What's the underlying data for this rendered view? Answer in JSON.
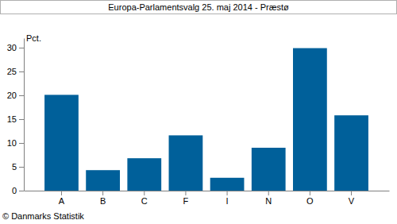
{
  "chart_data": {
    "type": "bar",
    "title": "Europa-Parlamentsvalg 25. maj 2014 - Præstø",
    "y_label": "Pct.",
    "source": "© Danmarks Statistik",
    "categories": [
      "A",
      "B",
      "C",
      "F",
      "I",
      "N",
      "O",
      "V"
    ],
    "values": [
      20.1,
      4.3,
      6.8,
      11.6,
      2.7,
      9.0,
      29.9,
      15.8
    ],
    "color": "#00609a",
    "ylim": [
      0,
      32
    ],
    "yticks": [
      0,
      5,
      10,
      15,
      20,
      25,
      30
    ],
    "grid": false
  }
}
